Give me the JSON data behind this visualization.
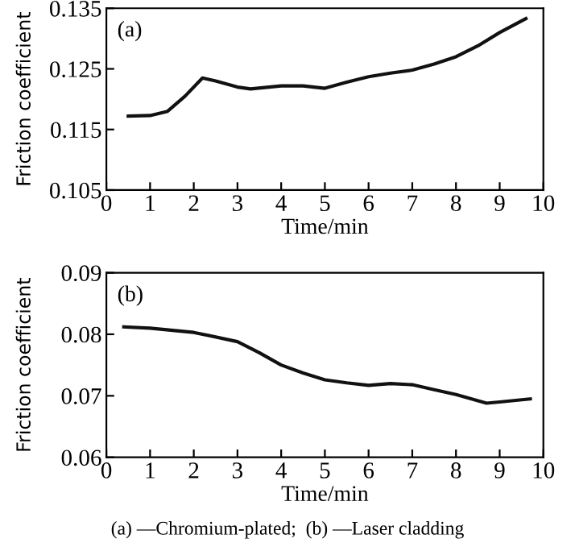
{
  "chart_data": [
    {
      "type": "line",
      "x": [
        0.5,
        1,
        1.4,
        1.8,
        2.2,
        2.5,
        3,
        3.3,
        4,
        4.5,
        5,
        5.5,
        6,
        6.5,
        7,
        7.5,
        8,
        8.5,
        9,
        9.6
      ],
      "series": [
        {
          "color": "#111111",
          "values": [
            0.1172,
            0.1173,
            0.118,
            0.1205,
            0.1235,
            0.123,
            0.122,
            0.1217,
            0.1222,
            0.1222,
            0.1218,
            0.1228,
            0.1237,
            0.1243,
            0.1248,
            0.1258,
            0.127,
            0.1288,
            0.131,
            0.1333
          ]
        }
      ],
      "xlabel": "Time/min",
      "ylabel": "Friction coefficient",
      "xlim": [
        0,
        10
      ],
      "ylim": [
        0.105,
        0.135
      ],
      "xticks": [
        0,
        1,
        2,
        3,
        4,
        5,
        6,
        7,
        8,
        9,
        10
      ],
      "yticks": [
        0.105,
        0.115,
        0.125,
        0.135
      ],
      "annotations": [
        "(a)"
      ],
      "grid": false,
      "legend": false
    },
    {
      "type": "line",
      "x": [
        0.4,
        1,
        2,
        3,
        3.5,
        4,
        4.5,
        5,
        5.5,
        6,
        6.5,
        7,
        7.5,
        8,
        8.7,
        9,
        9.7
      ],
      "series": [
        {
          "color": "#111111",
          "values": [
            0.0812,
            0.081,
            0.0803,
            0.0788,
            0.077,
            0.075,
            0.0737,
            0.0726,
            0.0721,
            0.0717,
            0.072,
            0.0718,
            0.071,
            0.0702,
            0.0688,
            0.069,
            0.0695
          ]
        }
      ],
      "xlabel": "Time/min",
      "ylabel": "Friction coefficient",
      "xlim": [
        0,
        10
      ],
      "ylim": [
        0.06,
        0.09
      ],
      "xticks": [
        0,
        1,
        2,
        3,
        4,
        5,
        6,
        7,
        8,
        9,
        10
      ],
      "yticks": [
        0.06,
        0.07,
        0.08,
        0.09
      ],
      "annotations": [
        "(b)",
        "(a) —Chromium-plated;  (b) —Laser cladding"
      ],
      "grid": false,
      "legend": false
    }
  ]
}
